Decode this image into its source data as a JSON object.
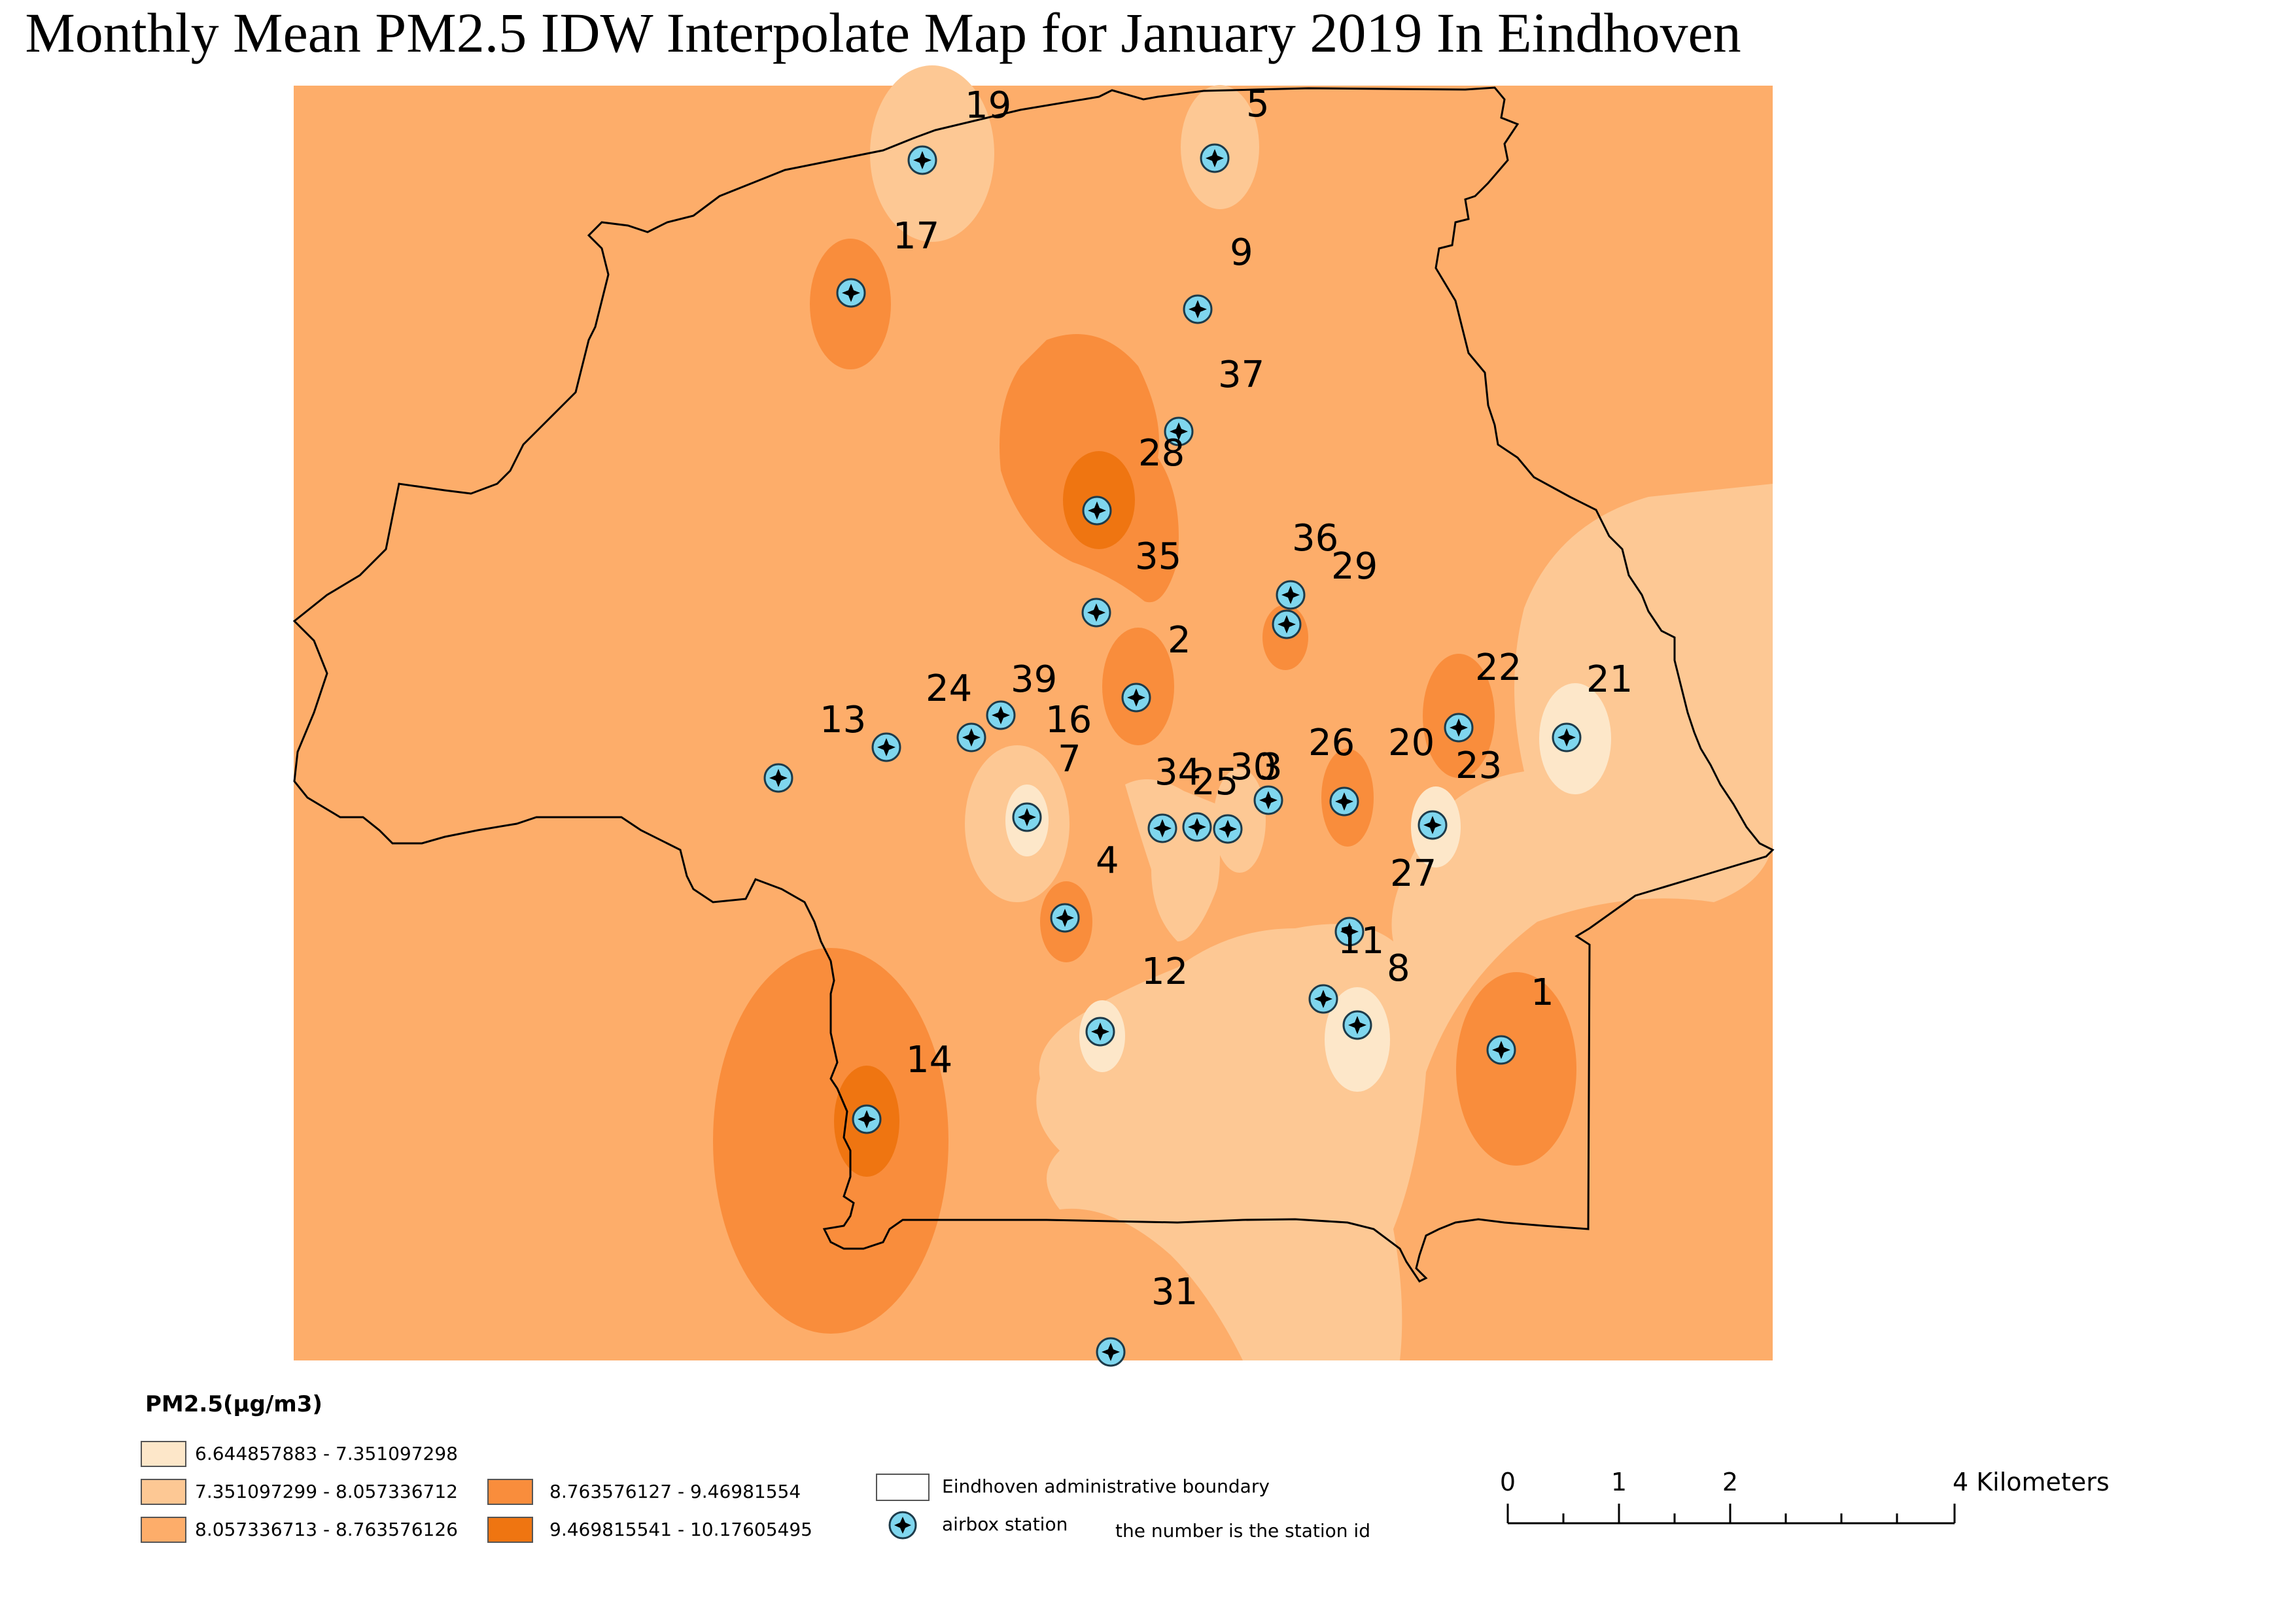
{
  "title": "Monthly Mean PM2.5 IDW Interpolate Map for January 2019 In Eindhoven",
  "colors": {
    "class1": "#fde7c9",
    "class2": "#fdc894",
    "class3": "#fdad6a",
    "class4": "#f98d3c",
    "class5": "#ef7511",
    "station_fill": "#7fd6ee",
    "boundary": "#000000"
  },
  "stations": [
    {
      "id": "19",
      "icon": "airbox-station-icon"
    },
    {
      "id": "5",
      "icon": "airbox-station-icon"
    },
    {
      "id": "17",
      "icon": "airbox-station-icon"
    },
    {
      "id": "9",
      "icon": "airbox-station-icon"
    },
    {
      "id": "37",
      "icon": "airbox-station-icon"
    },
    {
      "id": "28",
      "icon": "airbox-station-icon"
    },
    {
      "id": "35",
      "icon": "airbox-station-icon"
    },
    {
      "id": "36",
      "icon": "airbox-station-icon"
    },
    {
      "id": "29",
      "icon": "airbox-station-icon"
    },
    {
      "id": "2",
      "icon": "airbox-station-icon"
    },
    {
      "id": "22",
      "icon": "airbox-station-icon"
    },
    {
      "id": "21",
      "icon": "airbox-station-icon"
    },
    {
      "id": "13",
      "icon": "airbox-station-icon"
    },
    {
      "id": "24",
      "icon": "airbox-station-icon"
    },
    {
      "id": "39",
      "icon": "airbox-station-icon"
    },
    {
      "id": "16",
      "icon": "airbox-station-icon"
    },
    {
      "id": "7",
      "icon": "airbox-station-icon"
    },
    {
      "id": "34",
      "icon": "airbox-station-icon"
    },
    {
      "id": "25",
      "icon": "airbox-station-icon"
    },
    {
      "id": "30",
      "icon": "airbox-station-icon"
    },
    {
      "id": "3",
      "icon": "airbox-station-icon"
    },
    {
      "id": "26",
      "icon": "airbox-station-icon"
    },
    {
      "id": "20",
      "icon": "airbox-station-icon"
    },
    {
      "id": "23",
      "icon": "airbox-station-icon"
    },
    {
      "id": "4",
      "icon": "airbox-station-icon"
    },
    {
      "id": "27",
      "icon": "airbox-station-icon"
    },
    {
      "id": "11",
      "icon": "airbox-station-icon"
    },
    {
      "id": "8",
      "icon": "airbox-station-icon"
    },
    {
      "id": "12",
      "icon": "airbox-station-icon"
    },
    {
      "id": "1",
      "icon": "airbox-station-icon"
    },
    {
      "id": "14",
      "icon": "airbox-station-icon"
    },
    {
      "id": "31",
      "icon": "airbox-station-icon"
    }
  ],
  "legend": {
    "title": "PM2.5(μg/m3)",
    "classes": [
      "6.644857883 - 7.351097298",
      "7.351097299 - 8.057336712",
      "8.057336713 - 8.763576126",
      "8.763576127 - 9.46981554",
      "9.469815541 - 10.17605495"
    ],
    "boundary_label": "Eindhoven administrative boundary",
    "station_label": "airbox station",
    "station_note": "the number is the station id"
  },
  "scale_bar": {
    "ticks": [
      "0",
      "1",
      "2",
      "4 Kilometers"
    ]
  }
}
